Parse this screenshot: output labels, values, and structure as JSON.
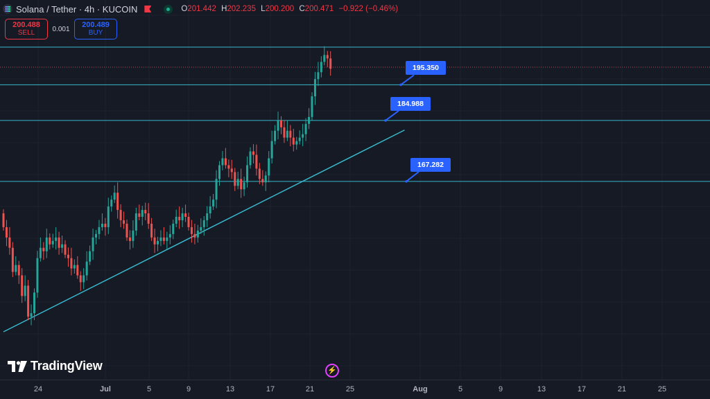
{
  "header": {
    "symbol": "Solana / Tether · 4h · KUCOIN",
    "ohlc": [
      {
        "k": "O",
        "v": "201.442"
      },
      {
        "k": "H",
        "v": "202.235"
      },
      {
        "k": "L",
        "v": "200.200"
      },
      {
        "k": "C",
        "v": "200.471"
      }
    ],
    "change": "−0.922 (−0.46%)"
  },
  "trade": {
    "sell_price": "200.488",
    "sell_label": "SELL",
    "spread": "0.001",
    "buy_price": "200.489",
    "buy_label": "BUY"
  },
  "branding": "TradingView",
  "colors": {
    "background": "#161a25",
    "up": "#26a69a",
    "down": "#ef5350",
    "level_line": "#38b8cc",
    "label": "#2962ff"
  },
  "chart_data": {
    "type": "candlestick",
    "timeframe": "4h",
    "x_tick_labels": [
      "24",
      "Jul",
      "5",
      "9",
      "13",
      "17",
      "21",
      "25",
      "Aug",
      "5",
      "9",
      "13",
      "17",
      "21",
      "25"
    ],
    "ylim": [
      120,
      210
    ],
    "closes": [
      154,
      151,
      148,
      141,
      143,
      140,
      134,
      137,
      128,
      129,
      135,
      145,
      148,
      147,
      151,
      149,
      150,
      151,
      148,
      149,
      146,
      145,
      142,
      143,
      140,
      138,
      140,
      144,
      147,
      151,
      152,
      154,
      155,
      154,
      160,
      162,
      164,
      159,
      156,
      155,
      151,
      150,
      153,
      158,
      157,
      159,
      158,
      155,
      151,
      149,
      150,
      151,
      150,
      151,
      152,
      155,
      157,
      156,
      158,
      157,
      154,
      152,
      151,
      153,
      154,
      156,
      158,
      160,
      162,
      168,
      172,
      174,
      172,
      171,
      170,
      166,
      168,
      165,
      167,
      172,
      176,
      175,
      171,
      168,
      167,
      169,
      174,
      179,
      182,
      185,
      183,
      180,
      182,
      180,
      178,
      179,
      180,
      181,
      184,
      186,
      192,
      197,
      199,
      202,
      204,
      203,
      200
    ],
    "levels": [
      {
        "price": 206.3
      },
      {
        "price": 195.35,
        "label": "195.350"
      },
      {
        "price": 184.988,
        "label": "184.988"
      },
      {
        "price": 167.282,
        "label": "167.282"
      }
    ],
    "current_price": 200.471,
    "trendline": [
      [
        0,
        123.6
      ],
      [
        130,
        182.2
      ]
    ]
  }
}
